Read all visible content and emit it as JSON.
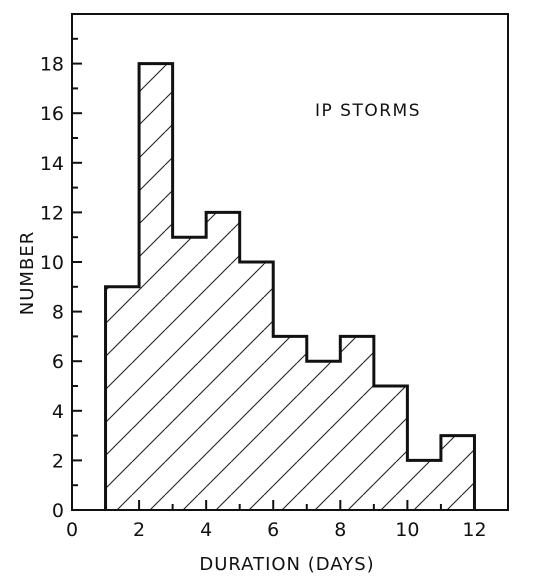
{
  "chart_data": {
    "type": "bar",
    "style": "histogram with diagonal hatching",
    "title": "",
    "annotation": "IP STORMS",
    "xlabel": "DURATION (DAYS)",
    "ylabel": "NUMBER",
    "xlim": [
      0,
      13
    ],
    "ylim": [
      0,
      20
    ],
    "x_ticks": [
      0,
      2,
      4,
      6,
      8,
      10,
      12
    ],
    "y_ticks": [
      0,
      2,
      4,
      6,
      8,
      10,
      12,
      14,
      16,
      18
    ],
    "bins": [
      {
        "x_start": 1,
        "x_end": 2,
        "value": 9
      },
      {
        "x_start": 2,
        "x_end": 3,
        "value": 18
      },
      {
        "x_start": 3,
        "x_end": 4,
        "value": 11
      },
      {
        "x_start": 4,
        "x_end": 5,
        "value": 12
      },
      {
        "x_start": 5,
        "x_end": 6,
        "value": 10
      },
      {
        "x_start": 6,
        "x_end": 7,
        "value": 7
      },
      {
        "x_start": 7,
        "x_end": 8,
        "value": 6
      },
      {
        "x_start": 8,
        "x_end": 9,
        "value": 7
      },
      {
        "x_start": 9,
        "x_end": 10,
        "value": 5
      },
      {
        "x_start": 10,
        "x_end": 11,
        "value": 2
      },
      {
        "x_start": 11,
        "x_end": 12,
        "value": 3
      }
    ],
    "grid": false,
    "colors": {
      "line": "#111111",
      "hatch": "#222222",
      "background": "#ffffff"
    }
  }
}
